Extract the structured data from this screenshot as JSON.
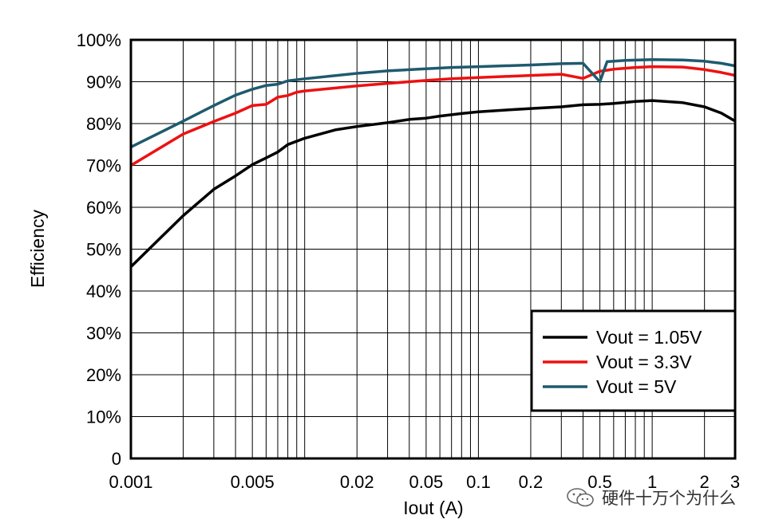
{
  "watermark": {
    "text": "硬件十万个为什么",
    "icon": "wechat-icon"
  },
  "chart_data": {
    "type": "line",
    "title": "",
    "xlabel": "Iout (A)",
    "ylabel": "Efficiency",
    "xscale": "log",
    "xlim": [
      0.001,
      3
    ],
    "ylim": [
      0,
      100
    ],
    "grid": true,
    "legend_position": "bottom-right",
    "x_ticks": [
      {
        "v": 0.001,
        "label": "0.001"
      },
      {
        "v": 0.005,
        "label": "0.005"
      },
      {
        "v": 0.02,
        "label": "0.02"
      },
      {
        "v": 0.05,
        "label": "0.05"
      },
      {
        "v": 0.1,
        "label": "0.1"
      },
      {
        "v": 0.2,
        "label": "0.2"
      },
      {
        "v": 0.5,
        "label": "0.5"
      },
      {
        "v": 1,
        "label": "1"
      },
      {
        "v": 2,
        "label": "2"
      },
      {
        "v": 3,
        "label": "3"
      }
    ],
    "y_ticks": [
      {
        "v": 0,
        "label": "0"
      },
      {
        "v": 10,
        "label": "10%"
      },
      {
        "v": 20,
        "label": "20%"
      },
      {
        "v": 30,
        "label": "30%"
      },
      {
        "v": 40,
        "label": "40%"
      },
      {
        "v": 50,
        "label": "50%"
      },
      {
        "v": 60,
        "label": "60%"
      },
      {
        "v": 70,
        "label": "70%"
      },
      {
        "v": 80,
        "label": "80%"
      },
      {
        "v": 90,
        "label": "90%"
      },
      {
        "v": 100,
        "label": "100%"
      }
    ],
    "series": [
      {
        "name": "Vout = 1.05V",
        "color": "#000000",
        "x": [
          0.001,
          0.002,
          0.003,
          0.004,
          0.005,
          0.006,
          0.007,
          0.008,
          0.01,
          0.015,
          0.02,
          0.03,
          0.04,
          0.05,
          0.06,
          0.08,
          0.1,
          0.15,
          0.2,
          0.3,
          0.4,
          0.5,
          0.6,
          0.8,
          1,
          1.5,
          2,
          2.5,
          3
        ],
        "y": [
          45.8,
          58,
          64.3,
          67.5,
          70.2,
          71.8,
          73.2,
          75,
          76.5,
          78.5,
          79.3,
          80.2,
          81,
          81.3,
          81.8,
          82.4,
          82.8,
          83.3,
          83.6,
          84,
          84.5,
          84.6,
          84.8,
          85.3,
          85.5,
          85,
          84,
          82.5,
          80.6
        ]
      },
      {
        "name": "Vout = 3.3V",
        "color": "#ee1111",
        "x": [
          0.001,
          0.002,
          0.003,
          0.004,
          0.005,
          0.006,
          0.007,
          0.008,
          0.009,
          0.01,
          0.02,
          0.03,
          0.05,
          0.07,
          0.1,
          0.15,
          0.2,
          0.3,
          0.4,
          0.5,
          0.6,
          0.8,
          1,
          1.5,
          2,
          2.5,
          3
        ],
        "y": [
          70,
          77.5,
          80.5,
          82.5,
          84.3,
          84.6,
          86.3,
          86.7,
          87.5,
          87.8,
          89,
          89.6,
          90.3,
          90.7,
          91,
          91.3,
          91.5,
          91.8,
          90.8,
          92.5,
          93,
          93.4,
          93.6,
          93.5,
          92.9,
          92.2,
          91.5
        ]
      },
      {
        "name": "Vout = 5V",
        "color": "#1e5a6e",
        "x": [
          0.001,
          0.002,
          0.003,
          0.004,
          0.005,
          0.006,
          0.007,
          0.008,
          0.01,
          0.02,
          0.03,
          0.05,
          0.07,
          0.1,
          0.2,
          0.3,
          0.4,
          0.5,
          0.55,
          0.7,
          1,
          1.5,
          2,
          2.5,
          3
        ],
        "y": [
          74.4,
          80.6,
          84.3,
          86.8,
          88.2,
          89.1,
          89.4,
          90.2,
          90.7,
          92,
          92.6,
          93.1,
          93.4,
          93.6,
          94,
          94.3,
          94.4,
          90,
          94.8,
          95.1,
          95.3,
          95.2,
          94.9,
          94.4,
          93.8
        ]
      }
    ]
  }
}
